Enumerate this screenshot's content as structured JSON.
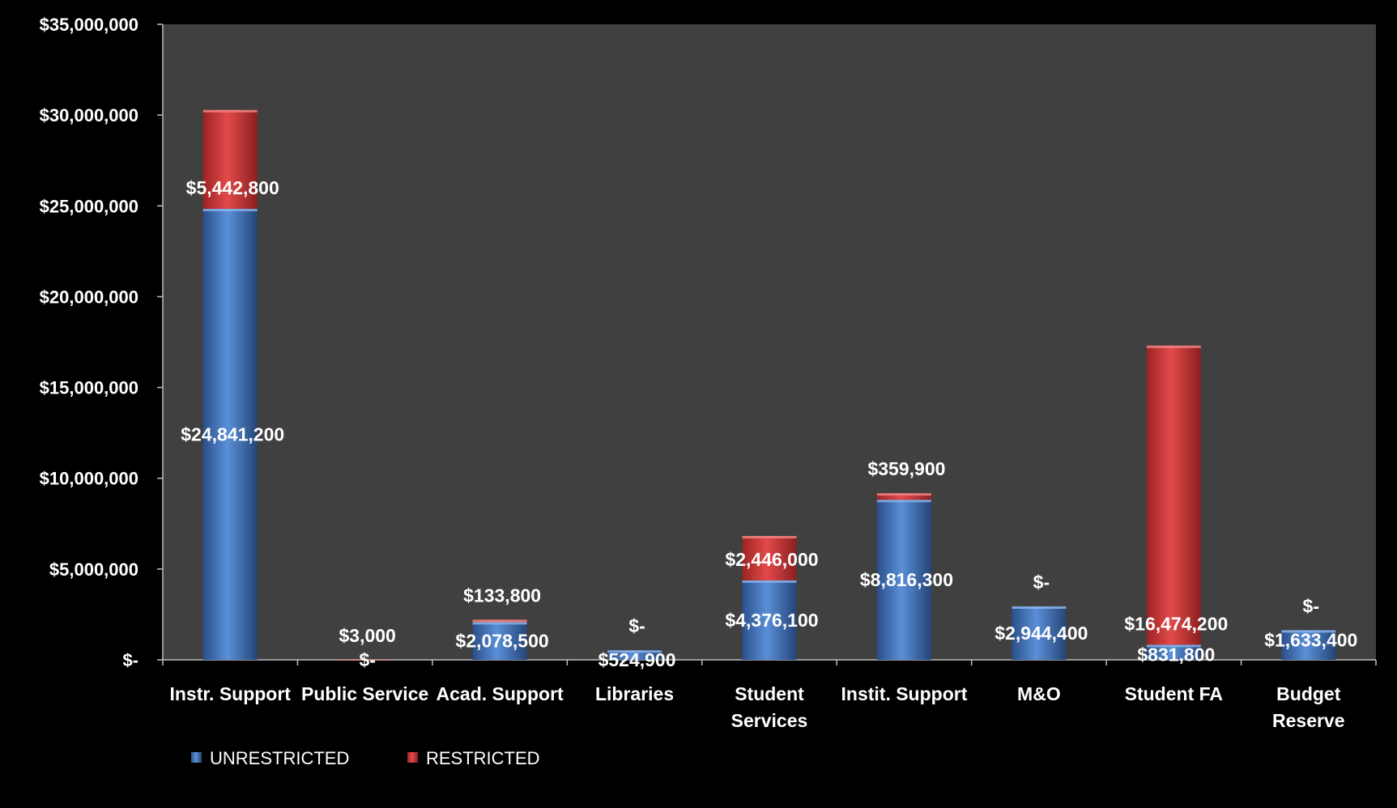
{
  "chart_data": {
    "type": "bar",
    "stacked": true,
    "title": "",
    "xlabel": "",
    "ylabel": "",
    "ylim": [
      0,
      35000000
    ],
    "yticks": [
      0,
      5000000,
      10000000,
      15000000,
      20000000,
      25000000,
      30000000,
      35000000
    ],
    "ytick_labels": [
      "$-",
      "$5,000,000",
      "$10,000,000",
      "$15,000,000",
      "$20,000,000",
      "$25,000,000",
      "$30,000,000",
      "$35,000,000"
    ],
    "grid": false,
    "legend_position": "bottom-left",
    "categories": [
      [
        "Instr. Support"
      ],
      [
        "Public Service"
      ],
      [
        "Acad. Support"
      ],
      [
        "Libraries"
      ],
      [
        "Student",
        "Services"
      ],
      [
        "Instit. Support"
      ],
      [
        "M&O"
      ],
      [
        "Student FA"
      ],
      [
        "Budget",
        "Reserve"
      ]
    ],
    "series": [
      {
        "name": "UNRESTRICTED",
        "color": "#3f73c2",
        "values": [
          24841200,
          0,
          2078500,
          524900,
          4376100,
          8816300,
          2944400,
          831800,
          1633400
        ],
        "labels": [
          "$24,841,200",
          "$-",
          "$2,078,500",
          "$524,900",
          "$4,376,100",
          "$8,816,300",
          "$2,944,400",
          "$831,800",
          "$1,633,400"
        ]
      },
      {
        "name": "RESTRICTED",
        "color": "#d43a3a",
        "values": [
          5442800,
          3000,
          133800,
          0,
          2446000,
          359900,
          0,
          16474200,
          0
        ],
        "labels": [
          "$5,442,800",
          "$3,000",
          "$133,800",
          "$-",
          "$2,446,000",
          "$359,900",
          "$-",
          "$16,474,200",
          "$-"
        ]
      }
    ],
    "plot_background": "#404040",
    "page_background": "#000000"
  }
}
